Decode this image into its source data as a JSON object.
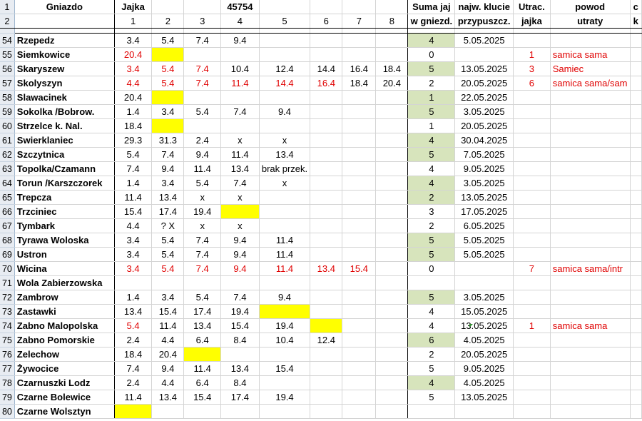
{
  "header": {
    "row1": {
      "rownum": "1",
      "gniazdo": "Gniazdo",
      "jajka": "Jajka",
      "ref_number": "45754",
      "suma": "Suma jaj",
      "klucie": "najw. klucie",
      "utrac": "Utrac.",
      "powod": "powod",
      "last": "c"
    },
    "row2": {
      "rownum": "2",
      "eggs": [
        "1",
        "2",
        "3",
        "4",
        "5",
        "6",
        "7",
        "8"
      ],
      "suma": "w gniezd.",
      "klucie": "przypuszcz.",
      "utrac": "jajka",
      "powod": "utraty",
      "last": "k"
    }
  },
  "rows": [
    {
      "n": "54",
      "name": "Rzepedz",
      "eggs": [
        "3.4",
        "5.4",
        "7.4",
        "9.4",
        "",
        "",
        "",
        ""
      ],
      "sum": "4",
      "date": "5.05.2025",
      "lost": "",
      "reason": ""
    },
    {
      "n": "55",
      "name": "Siemkowice",
      "eggs": [
        "20.4",
        "",
        "",
        "",
        "",
        "",
        "",
        ""
      ],
      "sum": "0",
      "date": "",
      "lost": "1",
      "reason": "samica sama"
    },
    {
      "n": "56",
      "name": "Skaryszew",
      "eggs": [
        "3.4",
        "5.4",
        "7.4",
        "10.4",
        "12.4",
        "14.4",
        "16.4",
        "18.4"
      ],
      "sum": "5",
      "date": "13.05.2025",
      "lost": "3",
      "reason": "Samiec"
    },
    {
      "n": "57",
      "name": "Skolyszyn",
      "eggs": [
        "4.4",
        "5.4",
        "7.4",
        "11.4",
        "14.4",
        "16.4",
        "18.4",
        "20.4"
      ],
      "sum": "2",
      "date": "20.05.2025",
      "lost": "6",
      "reason": "samica sama/sam"
    },
    {
      "n": "58",
      "name": "Slawacinek",
      "eggs": [
        "20.4",
        "",
        "",
        "",
        "",
        "",
        "",
        ""
      ],
      "sum": "1",
      "date": "22.05.2025",
      "lost": "",
      "reason": ""
    },
    {
      "n": "59",
      "name": "Sokolka /Bobrow.",
      "eggs": [
        "1.4",
        "3.4",
        "5.4",
        "7.4",
        "9.4",
        "",
        "",
        ""
      ],
      "sum": "5",
      "date": "3.05.2025",
      "lost": "",
      "reason": ""
    },
    {
      "n": "60",
      "name": "Strzelce k. Nal.",
      "eggs": [
        "18.4",
        "",
        "",
        "",
        "",
        "",
        "",
        ""
      ],
      "sum": "1",
      "date": "20.05.2025",
      "lost": "",
      "reason": ""
    },
    {
      "n": "61",
      "name": "Swierklaniec",
      "eggs": [
        "29.3",
        "31.3",
        "2.4",
        "x",
        "x",
        "",
        "",
        ""
      ],
      "sum": "4",
      "date": "30.04.2025",
      "lost": "",
      "reason": ""
    },
    {
      "n": "62",
      "name": "Szczytnica",
      "eggs": [
        "5.4",
        "7.4",
        "9.4",
        "11.4",
        "13.4",
        "",
        "",
        ""
      ],
      "sum": "5",
      "date": "7.05.2025",
      "lost": "",
      "reason": ""
    },
    {
      "n": "63",
      "name": "Topolka/Czamann",
      "eggs": [
        "7.4",
        "9.4",
        "11.4",
        "13.4",
        "brak przek.",
        "",
        "",
        ""
      ],
      "sum": "4",
      "date": "9.05.2025",
      "lost": "",
      "reason": ""
    },
    {
      "n": "64",
      "name": "Torun /Karszczorek",
      "eggs": [
        "1.4",
        "3.4",
        "5.4",
        "7.4",
        "x",
        "",
        "",
        ""
      ],
      "sum": "4",
      "date": "3.05.2025",
      "lost": "",
      "reason": ""
    },
    {
      "n": "65",
      "name": "Trepcza",
      "eggs": [
        "11.4",
        "13.4",
        "x",
        "x",
        "",
        "",
        "",
        ""
      ],
      "sum": "2",
      "date": "13.05.2025",
      "lost": "",
      "reason": ""
    },
    {
      "n": "66",
      "name": "Trzciniec",
      "eggs": [
        "15.4",
        "17.4",
        "19.4",
        "",
        "",
        "",
        "",
        ""
      ],
      "sum": "3",
      "date": "17.05.2025",
      "lost": "",
      "reason": ""
    },
    {
      "n": "67",
      "name": "Tymbark",
      "eggs": [
        "4.4",
        "?  X",
        "x",
        "x",
        "",
        "",
        "",
        ""
      ],
      "sum": "2",
      "date": "6.05.2025",
      "lost": "",
      "reason": ""
    },
    {
      "n": "68",
      "name": "Tyrawa Woloska",
      "eggs": [
        "3.4",
        "5.4",
        "7.4",
        "9.4",
        "11.4",
        "",
        "",
        ""
      ],
      "sum": "5",
      "date": "5.05.2025",
      "lost": "",
      "reason": ""
    },
    {
      "n": "69",
      "name": "Ustron",
      "eggs": [
        "3.4",
        "5.4",
        "7.4",
        "9.4",
        "11.4",
        "",
        "",
        ""
      ],
      "sum": "5",
      "date": "5.05.2025",
      "lost": "",
      "reason": ""
    },
    {
      "n": "70",
      "name": "Wicina",
      "eggs": [
        "3.4",
        "5.4",
        "7.4",
        "9.4",
        "11.4",
        "13.4",
        "15.4",
        ""
      ],
      "sum": "0",
      "date": "",
      "lost": "7",
      "reason": "samica sama/intr"
    },
    {
      "n": "71",
      "name": "Wola Zabierzowska",
      "eggs": [
        "",
        "",
        "",
        "",
        "",
        "",
        "",
        ""
      ],
      "sum": "",
      "date": "",
      "lost": "",
      "reason": ""
    },
    {
      "n": "72",
      "name": "Zambrow",
      "eggs": [
        "1.4",
        "3.4",
        "5.4",
        "7.4",
        "9.4",
        "",
        "",
        ""
      ],
      "sum": "5",
      "date": "3.05.2025",
      "lost": "",
      "reason": ""
    },
    {
      "n": "73",
      "name": "Zastawki",
      "eggs": [
        "13.4",
        "15.4",
        "17.4",
        "19.4",
        "",
        "",
        "",
        ""
      ],
      "sum": "4",
      "date": "15.05.2025",
      "lost": "",
      "reason": ""
    },
    {
      "n": "74",
      "name": "Zabno Malopolska",
      "eggs": [
        "5.4",
        "11.4",
        "13.4",
        "15.4",
        "19.4",
        "",
        "",
        ""
      ],
      "sum": "4",
      "date": "13.05.2025",
      "lost": "1",
      "reason": "samica sama"
    },
    {
      "n": "75",
      "name": "Zabno Pomorskie",
      "eggs": [
        "2.4",
        "4.4",
        "6.4",
        "8.4",
        "10.4",
        "12.4",
        "",
        ""
      ],
      "sum": "6",
      "date": "4.05.2025",
      "lost": "",
      "reason": ""
    },
    {
      "n": "76",
      "name": "Zelechow",
      "eggs": [
        "18.4",
        "20.4",
        "",
        "",
        "",
        "",
        "",
        ""
      ],
      "sum": "2",
      "date": "20.05.2025",
      "lost": "",
      "reason": ""
    },
    {
      "n": "77",
      "name": "Żywocice",
      "eggs": [
        "7.4",
        "9.4",
        "11.4",
        "13.4",
        "15.4",
        "",
        "",
        ""
      ],
      "sum": "5",
      "date": "9.05.2025",
      "lost": "",
      "reason": ""
    },
    {
      "n": "78",
      "name": "Czarnuszki Lodz",
      "eggs": [
        "2.4",
        "4.4",
        "6.4",
        "8.4",
        "",
        "",
        "",
        ""
      ],
      "sum": "4",
      "date": "4.05.2025",
      "lost": "",
      "reason": ""
    },
    {
      "n": "79",
      "name": "Czarne Bolewice",
      "eggs": [
        "11.4",
        "13.4",
        "15.4",
        "17.4",
        "19.4",
        "",
        "",
        ""
      ],
      "sum": "5",
      "date": "13.05.2025",
      "lost": "",
      "reason": ""
    },
    {
      "n": "80",
      "name": "Czarne Wolsztyn",
      "eggs": [
        "",
        "",
        "",
        "",
        "",
        "",
        "",
        ""
      ],
      "sum": "",
      "date": "",
      "lost": "",
      "reason": ""
    }
  ],
  "colors": {
    "red_text": "#e00000",
    "highlight_yellow": "#ffff00",
    "sum_green": "#d7e4bc",
    "row_header_bg": "#e8ecf2"
  }
}
